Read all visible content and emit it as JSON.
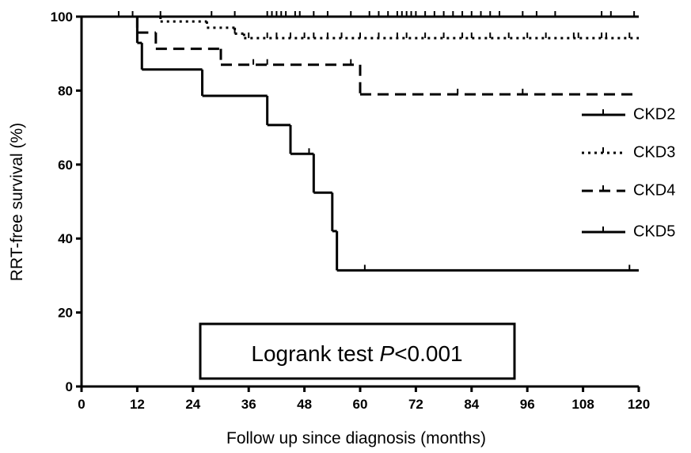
{
  "chart_data": {
    "type": "km-step",
    "x_label": "Follow up since diagnosis (months)",
    "y_label": "RRT-free survival (%)",
    "xlim": [
      0,
      120
    ],
    "xticks": [
      0,
      12,
      24,
      36,
      48,
      60,
      72,
      84,
      96,
      108,
      120
    ],
    "ylim": [
      0,
      100
    ],
    "yticks": [
      0,
      20,
      40,
      60,
      80,
      100
    ],
    "legend": "right",
    "annotation": [
      "Logrank test",
      "P",
      "<0.001"
    ],
    "series": [
      {
        "name": "CKD2",
        "color": "#000000",
        "style": "solid",
        "x": [
          0
        ],
        "values": [
          100
        ],
        "censor_x": [
          8,
          11,
          17,
          28,
          33,
          40,
          41,
          42,
          43,
          44,
          46,
          47,
          50,
          53,
          58,
          62,
          64,
          66,
          68,
          69,
          70,
          71,
          72,
          74,
          76,
          78,
          80,
          82,
          84,
          86,
          88,
          90,
          95,
          98,
          102,
          112,
          114,
          119
        ]
      },
      {
        "name": "CKD3",
        "color": "#000000",
        "style": "dotted",
        "x": [
          0,
          17,
          27,
          33,
          35
        ],
        "values": [
          100,
          98.7,
          97,
          95.4,
          94.2
        ],
        "censor_x": [
          33,
          36,
          40,
          42,
          45,
          48,
          50,
          53,
          56,
          60,
          64,
          68,
          70,
          74,
          78,
          82,
          84,
          88,
          92,
          96,
          100,
          106,
          107,
          112,
          113,
          118
        ]
      },
      {
        "name": "CKD4",
        "color": "#000000",
        "style": "dashed",
        "x": [
          0,
          12,
          16,
          30,
          60
        ],
        "values": [
          100,
          95.7,
          91.3,
          87,
          79
        ],
        "censor_x": [
          37,
          40,
          58,
          81,
          95
        ]
      },
      {
        "name": "CKD5",
        "color": "#000000",
        "style": "solid",
        "x": [
          0,
          12,
          13,
          26,
          40,
          45,
          50,
          54,
          55
        ],
        "values": [
          100,
          92.9,
          85.7,
          78.6,
          70.7,
          62.9,
          52.4,
          42,
          31.4
        ],
        "censor_x": [
          40,
          49,
          61,
          118
        ]
      }
    ]
  }
}
